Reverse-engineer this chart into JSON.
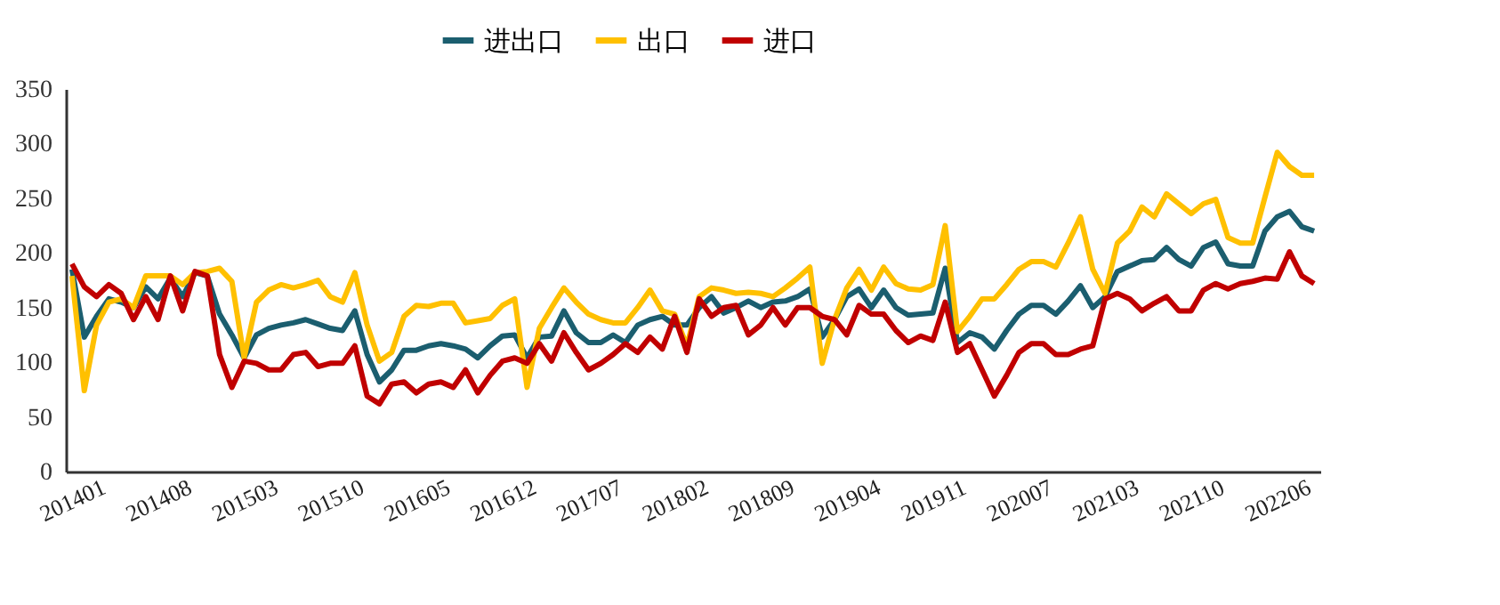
{
  "chart_data": {
    "type": "line",
    "legend": "top",
    "grid": false,
    "marker": "none",
    "line_style": "solid",
    "ylim": [
      0,
      350
    ],
    "yticks": [
      0,
      50,
      100,
      150,
      200,
      250,
      300,
      350
    ],
    "categories": [
      "201401",
      null,
      null,
      null,
      null,
      null,
      null,
      "201408",
      null,
      null,
      null,
      null,
      null,
      null,
      "201503",
      null,
      null,
      null,
      null,
      null,
      null,
      "201510",
      null,
      null,
      null,
      null,
      null,
      null,
      "201605",
      null,
      null,
      null,
      null,
      null,
      null,
      "201612",
      null,
      null,
      null,
      null,
      null,
      null,
      "201707",
      null,
      null,
      null,
      null,
      null,
      null,
      "201802",
      null,
      null,
      null,
      null,
      null,
      null,
      "201809",
      null,
      null,
      null,
      null,
      null,
      null,
      "201904",
      null,
      null,
      null,
      null,
      null,
      null,
      "201911",
      null,
      null,
      null,
      null,
      null,
      null,
      "202007",
      null,
      null,
      null,
      null,
      null,
      null,
      "202103",
      null,
      null,
      null,
      null,
      null,
      null,
      "202110",
      null,
      null,
      null,
      null,
      null,
      null,
      "202206",
      null,
      null,
      null
    ],
    "series": [
      {
        "name": "进出口",
        "color": "#1b5e6f",
        "values": [
          185,
          123,
          142,
          158,
          155,
          150,
          169,
          158,
          177,
          160,
          182,
          179,
          144,
          125,
          104,
          125,
          131,
          134,
          136,
          139,
          135,
          131,
          129,
          147,
          107,
          82,
          93,
          111,
          111,
          115,
          117,
          115,
          112,
          104,
          115,
          124,
          125,
          104,
          123,
          124,
          147,
          127,
          118,
          118,
          125,
          118,
          134,
          139,
          142,
          134,
          134,
          150,
          160,
          145,
          150,
          156,
          150,
          155,
          156,
          160,
          167,
          123,
          139,
          160,
          167,
          150,
          166,
          150,
          143,
          144,
          145,
          186,
          118,
          127,
          123,
          112,
          129,
          144,
          152,
          152,
          144,
          156,
          170,
          150,
          160,
          183,
          188,
          193,
          194,
          205,
          194,
          188,
          205,
          210,
          190,
          188,
          188,
          220,
          233,
          238,
          224,
          220
        ]
      },
      {
        "name": "出口",
        "color": "#ffc000",
        "values": [
          179,
          74,
          134,
          155,
          158,
          150,
          179,
          179,
          179,
          171,
          182,
          183,
          186,
          174,
          104,
          155,
          166,
          171,
          168,
          171,
          175,
          160,
          155,
          182,
          134,
          101,
          109,
          142,
          152,
          151,
          154,
          154,
          136,
          138,
          140,
          152,
          158,
          77,
          131,
          150,
          168,
          155,
          144,
          139,
          136,
          136,
          150,
          166,
          147,
          144,
          115,
          160,
          168,
          166,
          163,
          164,
          163,
          160,
          168,
          177,
          187,
          99,
          139,
          168,
          185,
          166,
          187,
          172,
          167,
          166,
          171,
          225,
          128,
          142,
          158,
          158,
          171,
          185,
          192,
          192,
          187,
          209,
          233,
          185,
          163,
          209,
          220,
          242,
          233,
          254,
          245,
          236,
          245,
          249,
          214,
          209,
          209,
          251,
          292,
          279,
          271,
          271
        ]
      },
      {
        "name": "进口",
        "color": "#c00000",
        "values": [
          190,
          169,
          160,
          171,
          163,
          139,
          160,
          139,
          179,
          147,
          183,
          179,
          107,
          77,
          101,
          99,
          93,
          93,
          107,
          109,
          96,
          99,
          99,
          115,
          69,
          62,
          80,
          82,
          72,
          80,
          82,
          77,
          93,
          72,
          88,
          101,
          104,
          99,
          117,
          101,
          127,
          109,
          93,
          99,
          107,
          117,
          109,
          123,
          112,
          142,
          109,
          158,
          142,
          150,
          152,
          125,
          134,
          150,
          134,
          150,
          150,
          142,
          139,
          125,
          152,
          144,
          144,
          129,
          118,
          124,
          120,
          155,
          109,
          117,
          93,
          69,
          88,
          109,
          117,
          117,
          107,
          107,
          112,
          115,
          158,
          163,
          158,
          147,
          154,
          160,
          147,
          147,
          166,
          172,
          167,
          172,
          174,
          177,
          176,
          201,
          179,
          172
        ]
      }
    ]
  }
}
